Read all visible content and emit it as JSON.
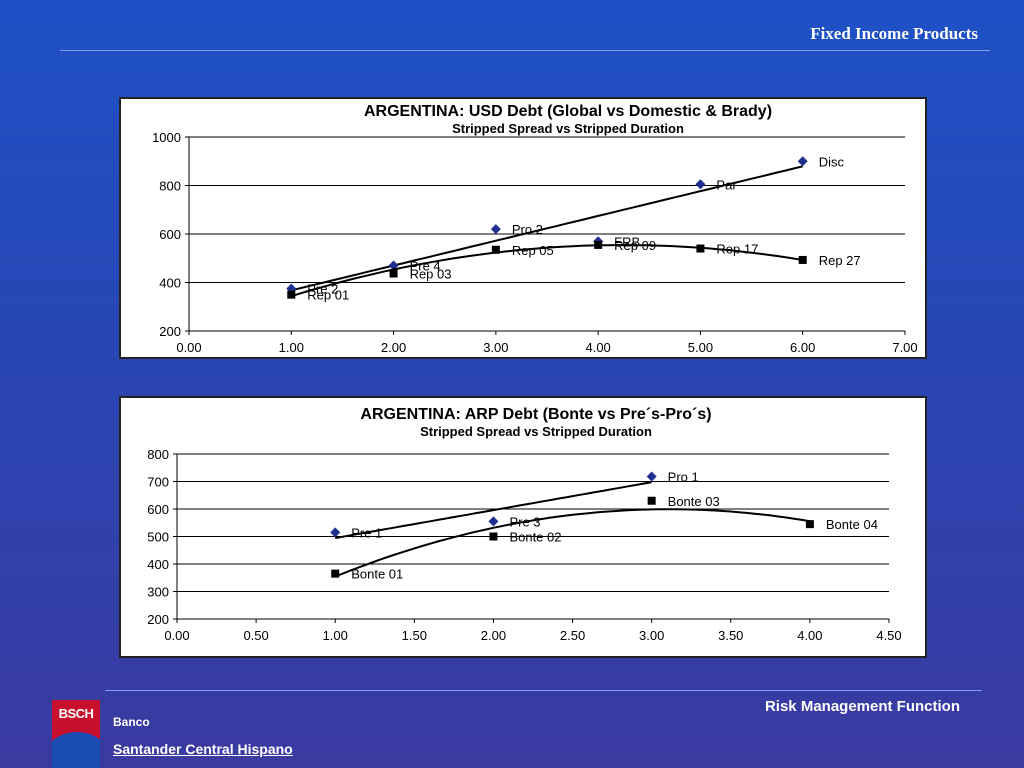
{
  "header": {
    "title": "Fixed Income Products"
  },
  "footer": {
    "function_label": "Risk Management Function",
    "bank_label": "Banco",
    "bank_name": "Santander Central Hispano",
    "logo_text": "BSCH"
  },
  "colors": {
    "diamond_series": "#1f2f8f",
    "square_series": "#000000",
    "background": "#2846b4"
  },
  "chart_data": [
    {
      "type": "scatter",
      "title": "ARGENTINA: USD Debt (Global vs Domestic & Brady)",
      "subtitle": "Stripped Spread vs Stripped Duration",
      "xlim": [
        0,
        7
      ],
      "ylim": [
        200,
        1000
      ],
      "xticks": [
        "0.00",
        "1.00",
        "2.00",
        "3.00",
        "4.00",
        "5.00",
        "6.00",
        "7.00"
      ],
      "yticks": [
        "200",
        "400",
        "600",
        "800",
        "1000"
      ],
      "grid": "horizontal",
      "series": [
        {
          "marker": "diamond",
          "trendline": "linear",
          "points": [
            {
              "label": "Pre 2",
              "x": 1.0,
              "y": 375
            },
            {
              "label": "Pre 4",
              "x": 2.0,
              "y": 470
            },
            {
              "label": "Pro 2",
              "x": 3.0,
              "y": 620
            },
            {
              "label": "FRB",
              "x": 4.0,
              "y": 570
            },
            {
              "label": "Par",
              "x": 5.0,
              "y": 805
            },
            {
              "label": "Disc",
              "x": 6.0,
              "y": 900
            }
          ]
        },
        {
          "marker": "square",
          "trendline": "polynomial",
          "points": [
            {
              "label": "Rep 01",
              "x": 1.0,
              "y": 350
            },
            {
              "label": "Rep 03",
              "x": 2.0,
              "y": 437
            },
            {
              "label": "Rep 05",
              "x": 3.0,
              "y": 535
            },
            {
              "label": "Rep 09",
              "x": 4.0,
              "y": 555
            },
            {
              "label": "Rep 17",
              "x": 5.0,
              "y": 540
            },
            {
              "label": "Rep 27",
              "x": 6.0,
              "y": 493
            }
          ]
        }
      ]
    },
    {
      "type": "scatter",
      "title": "ARGENTINA: ARP Debt (Bonte vs Pre´s-Pro´s)",
      "subtitle": "Stripped Spread vs Stripped Duration",
      "xlim": [
        0,
        4.5
      ],
      "ylim": [
        200,
        800
      ],
      "xticks": [
        "0.00",
        "0.50",
        "1.00",
        "1.50",
        "2.00",
        "2.50",
        "3.00",
        "3.50",
        "4.00",
        "4.50"
      ],
      "yticks": [
        "200",
        "300",
        "400",
        "500",
        "600",
        "700",
        "800"
      ],
      "grid": "horizontal",
      "series": [
        {
          "marker": "diamond",
          "trendline": "linear",
          "points": [
            {
              "label": "Pre 1",
              "x": 1.0,
              "y": 515
            },
            {
              "label": "Pre 3",
              "x": 2.0,
              "y": 555
            },
            {
              "label": "Pro 1",
              "x": 3.0,
              "y": 718
            }
          ]
        },
        {
          "marker": "square",
          "trendline": "polynomial",
          "points": [
            {
              "label": "Bonte 01",
              "x": 1.0,
              "y": 365
            },
            {
              "label": "Bonte 02",
              "x": 2.0,
              "y": 500
            },
            {
              "label": "Bonte 03",
              "x": 3.0,
              "y": 630
            },
            {
              "label": "Bonte 04",
              "x": 4.0,
              "y": 545
            }
          ]
        }
      ]
    }
  ]
}
